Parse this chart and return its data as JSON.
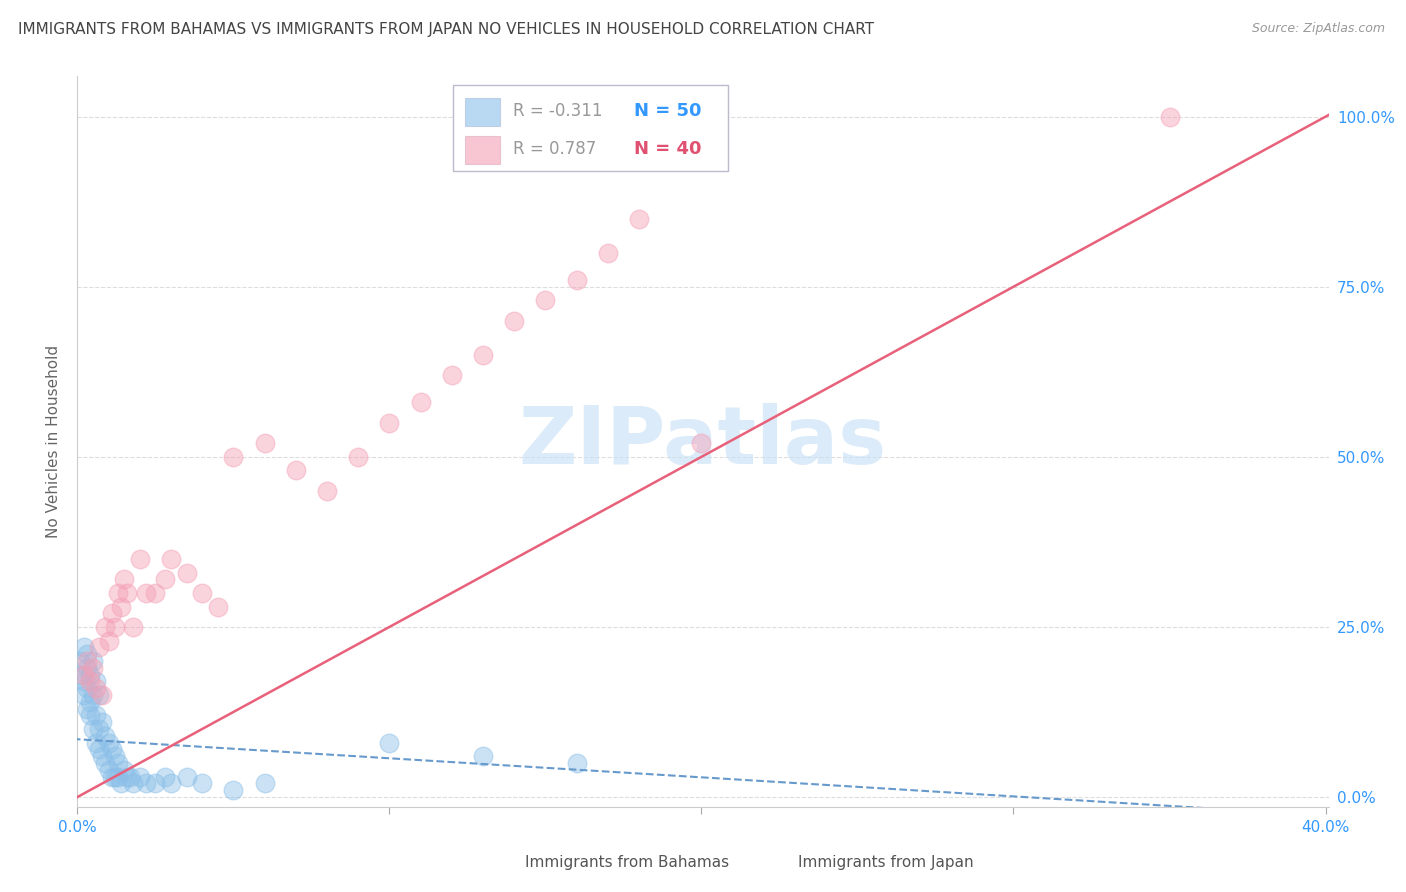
{
  "title": "IMMIGRANTS FROM BAHAMAS VS IMMIGRANTS FROM JAPAN NO VEHICLES IN HOUSEHOLD CORRELATION CHART",
  "source": "Source: ZipAtlas.com",
  "ylabel": "No Vehicles in Household",
  "xlim": [
    0.0,
    0.401
  ],
  "ylim": [
    -0.015,
    1.06
  ],
  "color_bahamas": "#8bbfe8",
  "color_japan": "#f4a0b5",
  "color_bahamas_line": "#6699cc",
  "color_japan_line": "#e8607a",
  "watermark": "ZIPatlas",
  "watermark_color": "#c5dff5",
  "title_fontsize": 11,
  "source_fontsize": 9,
  "legend_r_color": "#999999",
  "legend_n_color_bahamas": "#3399ff",
  "legend_n_color_japan": "#e05070",
  "grid_color": "#dddddd",
  "bg_color": "#ffffff",
  "japan_x": [
    0.002,
    0.003,
    0.004,
    0.005,
    0.006,
    0.007,
    0.008,
    0.009,
    0.01,
    0.011,
    0.012,
    0.013,
    0.014,
    0.015,
    0.016,
    0.018,
    0.02,
    0.022,
    0.025,
    0.028,
    0.03,
    0.035,
    0.04,
    0.045,
    0.05,
    0.06,
    0.07,
    0.08,
    0.09,
    0.1,
    0.11,
    0.12,
    0.13,
    0.14,
    0.15,
    0.16,
    0.17,
    0.18,
    0.2,
    0.35
  ],
  "japan_y": [
    0.18,
    0.2,
    0.17,
    0.19,
    0.16,
    0.22,
    0.15,
    0.25,
    0.23,
    0.27,
    0.25,
    0.3,
    0.28,
    0.32,
    0.3,
    0.25,
    0.35,
    0.3,
    0.3,
    0.32,
    0.35,
    0.33,
    0.3,
    0.28,
    0.5,
    0.52,
    0.48,
    0.45,
    0.5,
    0.55,
    0.58,
    0.62,
    0.65,
    0.7,
    0.73,
    0.76,
    0.8,
    0.85,
    0.52,
    1.0
  ],
  "bahamas_x": [
    0.001,
    0.001,
    0.002,
    0.002,
    0.002,
    0.003,
    0.003,
    0.003,
    0.003,
    0.004,
    0.004,
    0.004,
    0.005,
    0.005,
    0.005,
    0.006,
    0.006,
    0.006,
    0.007,
    0.007,
    0.007,
    0.008,
    0.008,
    0.009,
    0.009,
    0.01,
    0.01,
    0.011,
    0.011,
    0.012,
    0.012,
    0.013,
    0.013,
    0.014,
    0.015,
    0.016,
    0.017,
    0.018,
    0.02,
    0.022,
    0.025,
    0.028,
    0.03,
    0.035,
    0.04,
    0.05,
    0.06,
    0.1,
    0.13,
    0.16
  ],
  "bahamas_y": [
    0.18,
    0.2,
    0.15,
    0.17,
    0.22,
    0.13,
    0.16,
    0.19,
    0.21,
    0.14,
    0.12,
    0.18,
    0.1,
    0.15,
    0.2,
    0.08,
    0.12,
    0.17,
    0.07,
    0.1,
    0.15,
    0.06,
    0.11,
    0.05,
    0.09,
    0.04,
    0.08,
    0.03,
    0.07,
    0.03,
    0.06,
    0.03,
    0.05,
    0.02,
    0.04,
    0.03,
    0.03,
    0.02,
    0.03,
    0.02,
    0.02,
    0.03,
    0.02,
    0.03,
    0.02,
    0.01,
    0.02,
    0.08,
    0.06,
    0.05
  ]
}
